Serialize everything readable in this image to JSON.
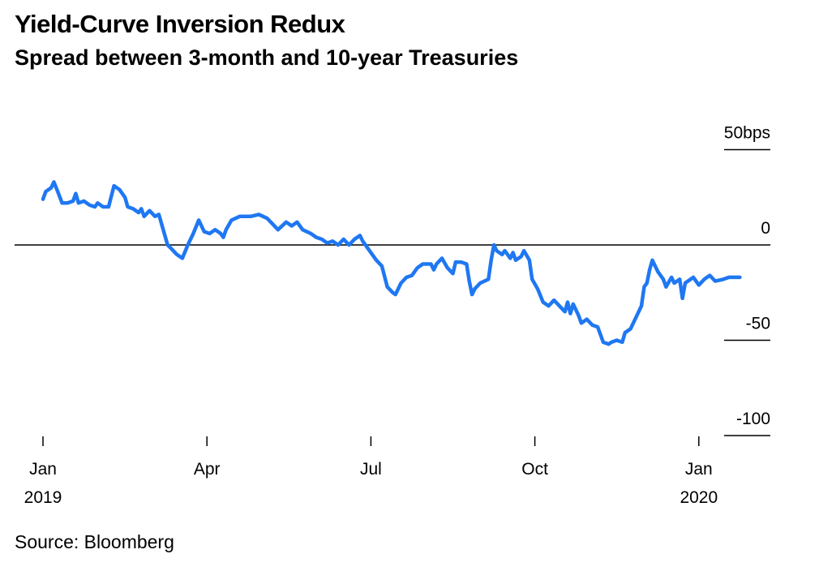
{
  "chart_data": {
    "type": "line",
    "title": "Yield-Curve Inversion Redux",
    "subtitle": "Spread between 3-month and 10-year Treasuries",
    "source": "Source: Bloomberg",
    "ylabel": "bps",
    "ylim": [
      -100,
      50
    ],
    "y_ticks": [
      {
        "value": 50,
        "label": "50bps"
      },
      {
        "value": 0,
        "label": "0"
      },
      {
        "value": -50,
        "label": "-50"
      },
      {
        "value": -100,
        "label": "-100"
      }
    ],
    "x_ticks": [
      {
        "month": 0,
        "label": "Jan",
        "year": "2019"
      },
      {
        "month": 3,
        "label": "Apr",
        "year": ""
      },
      {
        "month": 6,
        "label": "Jul",
        "year": ""
      },
      {
        "month": 9,
        "label": "Oct",
        "year": ""
      },
      {
        "month": 12,
        "label": "Jan",
        "year": "2020"
      }
    ],
    "xlim_months": [
      0,
      13.6
    ],
    "series": [
      {
        "name": "3-month / 10-year spread",
        "color": "#1f77f2",
        "points": [
          [
            0.0,
            24
          ],
          [
            0.05,
            28
          ],
          [
            0.15,
            30
          ],
          [
            0.2,
            33
          ],
          [
            0.27,
            28
          ],
          [
            0.35,
            22
          ],
          [
            0.45,
            22
          ],
          [
            0.55,
            23
          ],
          [
            0.6,
            27
          ],
          [
            0.65,
            22
          ],
          [
            0.75,
            23
          ],
          [
            0.85,
            21
          ],
          [
            0.95,
            20
          ],
          [
            1.0,
            22
          ],
          [
            1.1,
            20
          ],
          [
            1.2,
            20
          ],
          [
            1.3,
            31
          ],
          [
            1.4,
            29
          ],
          [
            1.5,
            25
          ],
          [
            1.55,
            20
          ],
          [
            1.65,
            19
          ],
          [
            1.75,
            17
          ],
          [
            1.8,
            19
          ],
          [
            1.85,
            15
          ],
          [
            1.95,
            18
          ],
          [
            2.05,
            15
          ],
          [
            2.12,
            16
          ],
          [
            2.2,
            8
          ],
          [
            2.28,
            0
          ],
          [
            2.35,
            -2
          ],
          [
            2.45,
            -5
          ],
          [
            2.55,
            -7
          ],
          [
            2.65,
            0
          ],
          [
            2.75,
            6
          ],
          [
            2.85,
            13
          ],
          [
            2.95,
            7
          ],
          [
            3.05,
            6
          ],
          [
            3.15,
            8
          ],
          [
            3.25,
            6
          ],
          [
            3.3,
            4
          ],
          [
            3.35,
            8
          ],
          [
            3.45,
            13
          ],
          [
            3.6,
            15
          ],
          [
            3.8,
            15
          ],
          [
            3.95,
            16
          ],
          [
            4.1,
            14
          ],
          [
            4.2,
            11
          ],
          [
            4.3,
            8
          ],
          [
            4.45,
            12
          ],
          [
            4.55,
            10
          ],
          [
            4.65,
            12
          ],
          [
            4.75,
            8
          ],
          [
            4.9,
            6
          ],
          [
            5.0,
            4
          ],
          [
            5.1,
            3
          ],
          [
            5.2,
            1
          ],
          [
            5.3,
            2
          ],
          [
            5.4,
            0
          ],
          [
            5.5,
            3
          ],
          [
            5.6,
            0
          ],
          [
            5.7,
            3
          ],
          [
            5.8,
            5
          ],
          [
            5.85,
            2
          ],
          [
            5.9,
            0
          ],
          [
            5.95,
            -2
          ],
          [
            6.0,
            -4
          ],
          [
            6.1,
            -8
          ],
          [
            6.2,
            -11
          ],
          [
            6.3,
            -22
          ],
          [
            6.4,
            -25
          ],
          [
            6.45,
            -26
          ],
          [
            6.55,
            -20
          ],
          [
            6.65,
            -17
          ],
          [
            6.75,
            -16
          ],
          [
            6.85,
            -12
          ],
          [
            6.95,
            -10
          ],
          [
            7.1,
            -10
          ],
          [
            7.15,
            -13
          ],
          [
            7.2,
            -10
          ],
          [
            7.3,
            -7
          ],
          [
            7.4,
            -12
          ],
          [
            7.5,
            -15
          ],
          [
            7.55,
            -9
          ],
          [
            7.65,
            -9
          ],
          [
            7.75,
            -10
          ],
          [
            7.8,
            -19
          ],
          [
            7.85,
            -26
          ],
          [
            7.9,
            -23
          ],
          [
            8.0,
            -20
          ],
          [
            8.15,
            -18
          ],
          [
            8.2,
            -8
          ],
          [
            8.25,
            0
          ],
          [
            8.3,
            -3
          ],
          [
            8.4,
            -5
          ],
          [
            8.45,
            -3
          ],
          [
            8.55,
            -7
          ],
          [
            8.6,
            -4
          ],
          [
            8.65,
            -8
          ],
          [
            8.75,
            -6
          ],
          [
            8.8,
            -3
          ],
          [
            8.9,
            -8
          ],
          [
            8.95,
            -18
          ],
          [
            9.05,
            -23
          ],
          [
            9.15,
            -30
          ],
          [
            9.25,
            -32
          ],
          [
            9.35,
            -29
          ],
          [
            9.45,
            -32
          ],
          [
            9.55,
            -35
          ],
          [
            9.6,
            -30
          ],
          [
            9.65,
            -36
          ],
          [
            9.7,
            -31
          ],
          [
            9.8,
            -37
          ],
          [
            9.85,
            -41
          ],
          [
            9.95,
            -39
          ],
          [
            10.05,
            -42
          ],
          [
            10.15,
            -43
          ],
          [
            10.25,
            -51
          ],
          [
            10.35,
            -52
          ],
          [
            10.4,
            -51
          ],
          [
            10.5,
            -50
          ],
          [
            10.6,
            -51
          ],
          [
            10.65,
            -46
          ],
          [
            10.75,
            -44
          ],
          [
            10.85,
            -38
          ],
          [
            10.95,
            -32
          ],
          [
            11.0,
            -22
          ],
          [
            11.05,
            -20
          ],
          [
            11.1,
            -13
          ],
          [
            11.15,
            -8
          ],
          [
            11.25,
            -14
          ],
          [
            11.35,
            -18
          ],
          [
            11.4,
            -22
          ],
          [
            11.5,
            -17
          ],
          [
            11.55,
            -20
          ],
          [
            11.65,
            -18
          ],
          [
            11.7,
            -28
          ],
          [
            11.75,
            -20
          ],
          [
            11.8,
            -19
          ],
          [
            11.9,
            -17
          ],
          [
            12.0,
            -21
          ],
          [
            12.1,
            -18
          ],
          [
            12.15,
            -17
          ],
          [
            12.2,
            -16
          ],
          [
            12.3,
            -19
          ],
          [
            12.45,
            -18
          ],
          [
            12.55,
            -17
          ],
          [
            12.65,
            -17
          ],
          [
            12.75,
            -17
          ]
        ]
      }
    ]
  }
}
